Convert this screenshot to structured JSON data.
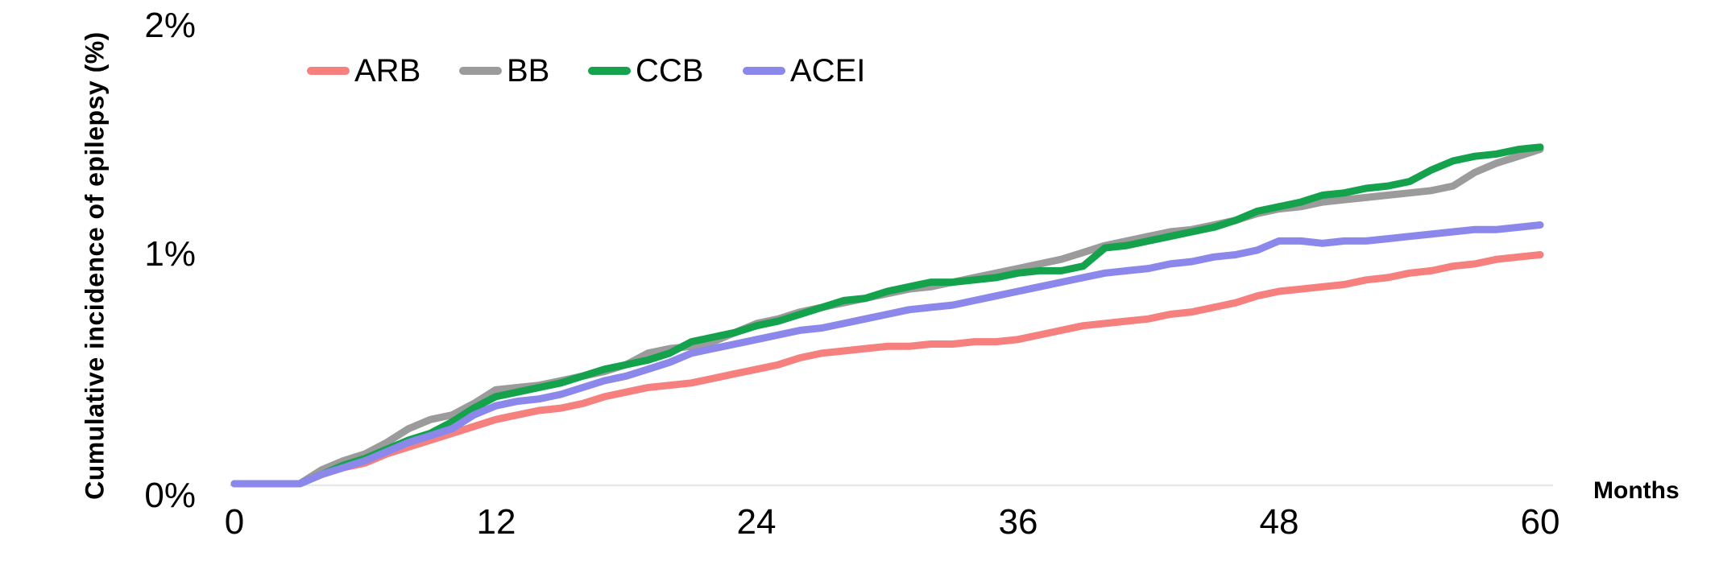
{
  "chart_data": {
    "type": "line",
    "title": "",
    "ylabel": "Cumulative incidence of epilepsy (%)",
    "xlabel": "Months",
    "xlim": [
      0,
      60
    ],
    "ylim": [
      0,
      2
    ],
    "grid": false,
    "legend_position": "top-inside",
    "x_tick_values": [
      0,
      12,
      24,
      36,
      48,
      60
    ],
    "x_tick_labels": [
      "0",
      "12",
      "24",
      "36",
      "48",
      "60"
    ],
    "y_tick_values": [
      0,
      1,
      2
    ],
    "y_tick_labels": [
      "0%",
      "1%",
      "2%"
    ],
    "axis_line_color": "#E9E9E9",
    "x": [
      0,
      1,
      2,
      3,
      4,
      5,
      6,
      7,
      8,
      9,
      10,
      11,
      12,
      13,
      14,
      15,
      16,
      17,
      18,
      19,
      20,
      21,
      22,
      23,
      24,
      25,
      26,
      27,
      28,
      29,
      30,
      31,
      32,
      33,
      34,
      35,
      36,
      37,
      38,
      39,
      40,
      41,
      42,
      43,
      44,
      45,
      46,
      47,
      48,
      49,
      50,
      51,
      52,
      53,
      54,
      55,
      56,
      57,
      58,
      59,
      60
    ],
    "series": [
      {
        "name": "ARB",
        "color": "#F5807E",
        "values": [
          0,
          0,
          0,
          0,
          0.04,
          0.07,
          0.09,
          0.13,
          0.16,
          0.19,
          0.22,
          0.25,
          0.28,
          0.3,
          0.32,
          0.33,
          0.35,
          0.38,
          0.4,
          0.42,
          0.43,
          0.44,
          0.46,
          0.48,
          0.5,
          0.52,
          0.55,
          0.57,
          0.58,
          0.59,
          0.6,
          0.6,
          0.61,
          0.61,
          0.62,
          0.62,
          0.63,
          0.65,
          0.67,
          0.69,
          0.7,
          0.71,
          0.72,
          0.74,
          0.75,
          0.77,
          0.79,
          0.82,
          0.84,
          0.85,
          0.86,
          0.87,
          0.89,
          0.9,
          0.92,
          0.93,
          0.95,
          0.96,
          0.98,
          0.99,
          1.0
        ]
      },
      {
        "name": "BB",
        "color": "#9B9B9B",
        "values": [
          0,
          0,
          0,
          0,
          0.06,
          0.1,
          0.13,
          0.18,
          0.24,
          0.28,
          0.3,
          0.35,
          0.41,
          0.42,
          0.43,
          0.45,
          0.47,
          0.49,
          0.52,
          0.57,
          0.59,
          0.6,
          0.62,
          0.66,
          0.7,
          0.72,
          0.75,
          0.77,
          0.79,
          0.81,
          0.83,
          0.85,
          0.86,
          0.88,
          0.9,
          0.92,
          0.94,
          0.96,
          0.98,
          1.01,
          1.04,
          1.06,
          1.08,
          1.1,
          1.11,
          1.13,
          1.15,
          1.18,
          1.2,
          1.21,
          1.23,
          1.24,
          1.25,
          1.26,
          1.27,
          1.28,
          1.3,
          1.36,
          1.4,
          1.43,
          1.46
        ]
      },
      {
        "name": "CCB",
        "color": "#14A24D",
        "values": [
          0,
          0,
          0,
          0,
          0.04,
          0.08,
          0.11,
          0.15,
          0.19,
          0.22,
          0.27,
          0.33,
          0.38,
          0.4,
          0.42,
          0.44,
          0.47,
          0.5,
          0.52,
          0.54,
          0.57,
          0.62,
          0.64,
          0.66,
          0.69,
          0.71,
          0.74,
          0.77,
          0.8,
          0.81,
          0.84,
          0.86,
          0.88,
          0.88,
          0.89,
          0.9,
          0.92,
          0.93,
          0.93,
          0.95,
          1.03,
          1.04,
          1.06,
          1.08,
          1.1,
          1.12,
          1.15,
          1.19,
          1.21,
          1.23,
          1.26,
          1.27,
          1.29,
          1.3,
          1.32,
          1.37,
          1.41,
          1.43,
          1.44,
          1.46,
          1.47
        ]
      },
      {
        "name": "ACEI",
        "color": "#8B87EB",
        "values": [
          0,
          0,
          0,
          0,
          0.04,
          0.07,
          0.1,
          0.14,
          0.18,
          0.21,
          0.24,
          0.3,
          0.34,
          0.36,
          0.37,
          0.39,
          0.42,
          0.45,
          0.47,
          0.5,
          0.53,
          0.57,
          0.59,
          0.61,
          0.63,
          0.65,
          0.67,
          0.68,
          0.7,
          0.72,
          0.74,
          0.76,
          0.77,
          0.78,
          0.8,
          0.82,
          0.84,
          0.86,
          0.88,
          0.9,
          0.92,
          0.93,
          0.94,
          0.96,
          0.97,
          0.99,
          1.0,
          1.02,
          1.06,
          1.06,
          1.05,
          1.06,
          1.06,
          1.07,
          1.08,
          1.09,
          1.1,
          1.11,
          1.11,
          1.12,
          1.13
        ]
      }
    ]
  }
}
